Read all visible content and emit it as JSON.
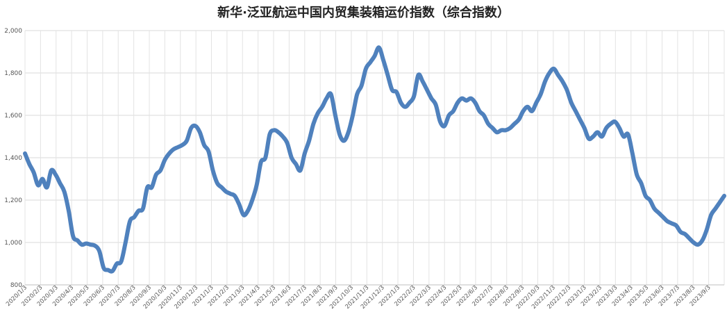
{
  "chart_data": {
    "type": "line",
    "title": "新华·泛亚航运中国内贸集装箱运价指数（综合指数）",
    "xlabel": "",
    "ylabel": "",
    "ylim": [
      800,
      2000
    ],
    "y_ticks": [
      "800",
      "1,000",
      "1,200",
      "1,400",
      "1,600",
      "1,800",
      "2,000"
    ],
    "y_tick_values": [
      800,
      1000,
      1200,
      1400,
      1600,
      1800,
      2000
    ],
    "grid": {
      "horizontal": true,
      "vertical": true
    },
    "legend": "none",
    "line_color": "#4f81bd",
    "x_ticks": [
      "2020/1/3",
      "2020/2/3",
      "2020/3/3",
      "2020/4/3",
      "2020/5/3",
      "2020/6/3",
      "2020/7/3",
      "2020/8/3",
      "2020/9/3",
      "2020/10/3",
      "2020/11/3",
      "2020/12/3",
      "2021/1/3",
      "2021/2/3",
      "2021/3/3",
      "2021/4/3",
      "2021/5/3",
      "2021/6/3",
      "2021/7/3",
      "2021/8/3",
      "2021/9/3",
      "2021/10/3",
      "2021/11/3",
      "2021/12/3",
      "2022/1/3",
      "2022/2/3",
      "2022/3/3",
      "2022/4/3",
      "2022/5/3",
      "2022/6/3",
      "2022/7/3",
      "2022/8/3",
      "2022/9/3",
      "2022/10/3",
      "2022/11/3",
      "2022/12/3",
      "2023/1/3",
      "2023/2/3",
      "2023/3/3",
      "2023/4/3",
      "2023/5/3",
      "2023/6/3",
      "2023/7/3",
      "2023/8/3",
      "2023/9/3"
    ],
    "series": [
      {
        "values": [
          1420,
          1370,
          1330,
          1270,
          1300,
          1260,
          1340,
          1320,
          1280,
          1240,
          1150,
          1030,
          1010,
          990,
          995,
          990,
          985,
          960,
          880,
          870,
          865,
          900,
          910,
          1000,
          1100,
          1120,
          1150,
          1160,
          1260,
          1260,
          1320,
          1340,
          1390,
          1420,
          1440,
          1450,
          1460,
          1480,
          1540,
          1550,
          1520,
          1460,
          1430,
          1340,
          1280,
          1260,
          1240,
          1230,
          1220,
          1180,
          1130,
          1150,
          1200,
          1270,
          1380,
          1400,
          1510,
          1530,
          1520,
          1500,
          1470,
          1400,
          1370,
          1340,
          1420,
          1480,
          1560,
          1610,
          1640,
          1680,
          1700,
          1600,
          1510,
          1480,
          1520,
          1600,
          1700,
          1740,
          1820,
          1850,
          1880,
          1920,
          1860,
          1790,
          1720,
          1710,
          1660,
          1640,
          1660,
          1690,
          1790,
          1760,
          1720,
          1680,
          1650,
          1570,
          1550,
          1600,
          1620,
          1660,
          1680,
          1670,
          1680,
          1660,
          1620,
          1600,
          1560,
          1540,
          1520,
          1530,
          1530,
          1540,
          1560,
          1580,
          1620,
          1640,
          1620,
          1660,
          1700,
          1760,
          1800,
          1820,
          1790,
          1760,
          1720,
          1660,
          1620,
          1580,
          1540,
          1490,
          1500,
          1520,
          1500,
          1540,
          1560,
          1570,
          1540,
          1500,
          1510,
          1420,
          1320,
          1280,
          1220,
          1200,
          1160,
          1140,
          1120,
          1100,
          1090,
          1080,
          1050,
          1040,
          1020,
          1000,
          990,
          1010,
          1060,
          1130,
          1160,
          1190,
          1220
        ]
      }
    ]
  }
}
